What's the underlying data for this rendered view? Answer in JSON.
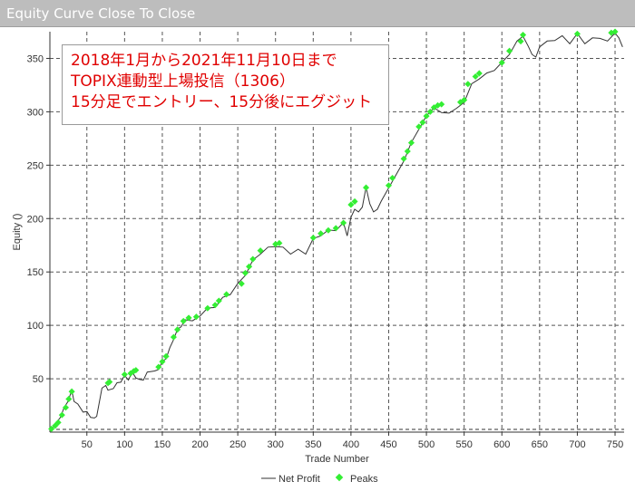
{
  "window": {
    "title": "Equity Curve Close To Close"
  },
  "annotation": {
    "lines": [
      "2018年1月から2021年11月10日まで",
      "TOPIX連動型上場投信（1306）",
      "15分足でエントリー、15分後にエグジット"
    ]
  },
  "chart_data": {
    "type": "line",
    "title": "",
    "xlabel": "Trade Number",
    "ylabel": "Equity ()",
    "xlim": [
      1,
      762
    ],
    "ylim": [
      0,
      375
    ],
    "x_ticks": [
      50,
      100,
      150,
      200,
      250,
      300,
      350,
      400,
      450,
      500,
      550,
      600,
      650,
      700,
      750
    ],
    "y_ticks": [
      50,
      100,
      150,
      200,
      250,
      300,
      350
    ],
    "grid": true,
    "legend_position": "bottom-center",
    "series": [
      {
        "name": "Net Profit",
        "color": "#333333",
        "x": [
          1,
          5,
          10,
          15,
          20,
          25,
          30,
          33,
          38,
          45,
          50,
          55,
          60,
          63,
          70,
          75,
          78,
          85,
          90,
          95,
          100,
          105,
          110,
          115,
          120,
          125,
          130,
          135,
          140,
          145,
          150,
          155,
          160,
          165,
          170,
          175,
          180,
          185,
          190,
          200,
          210,
          220,
          230,
          240,
          250,
          260,
          270,
          280,
          290,
          300,
          310,
          320,
          330,
          340,
          350,
          360,
          370,
          380,
          390,
          395,
          400,
          405,
          410,
          415,
          420,
          425,
          430,
          435,
          440,
          450,
          460,
          470,
          480,
          490,
          500,
          510,
          520,
          530,
          540,
          550,
          560,
          570,
          580,
          590,
          600,
          610,
          620,
          628,
          635,
          640,
          645,
          650,
          660,
          670,
          680,
          690,
          700,
          710,
          720,
          730,
          740,
          750,
          755,
          760
        ],
        "y": [
          2,
          5,
          8,
          15,
          22,
          30,
          38,
          30,
          25,
          20,
          18,
          15,
          12,
          16,
          40,
          45,
          38,
          42,
          45,
          48,
          52,
          50,
          55,
          52,
          48,
          50,
          55,
          58,
          56,
          60,
          65,
          70,
          78,
          88,
          95,
          100,
          104,
          106,
          103,
          110,
          115,
          118,
          125,
          130,
          138,
          148,
          160,
          168,
          172,
          175,
          172,
          168,
          170,
          168,
          180,
          185,
          188,
          190,
          195,
          185,
          200,
          210,
          205,
          212,
          228,
          215,
          205,
          210,
          215,
          230,
          240,
          255,
          270,
          285,
          295,
          305,
          298,
          300,
          302,
          310,
          325,
          332,
          335,
          340,
          345,
          355,
          365,
          372,
          360,
          355,
          350,
          362,
          365,
          368,
          370,
          365,
          372,
          365,
          368,
          370,
          365,
          375,
          368,
          362
        ]
      },
      {
        "name": "Peaks",
        "color": "#33ee33",
        "x": [
          3,
          8,
          12,
          17,
          22,
          26,
          30,
          78,
          80,
          100,
          108,
          112,
          115,
          145,
          150,
          155,
          165,
          170,
          178,
          185,
          195,
          210,
          220,
          225,
          235,
          255,
          260,
          265,
          270,
          280,
          300,
          305,
          350,
          360,
          370,
          380,
          390,
          400,
          405,
          420,
          450,
          455,
          470,
          475,
          480,
          490,
          495,
          500,
          505,
          510,
          515,
          520,
          545,
          550,
          555,
          565,
          570,
          600,
          610,
          625,
          628,
          700,
          745,
          750
        ],
        "y": [
          3,
          6,
          9,
          16,
          23,
          31,
          38,
          46,
          47,
          54,
          55,
          57,
          58,
          61,
          66,
          71,
          89,
          96,
          104,
          107,
          108,
          116,
          119,
          123,
          129,
          139,
          149,
          155,
          162,
          170,
          176,
          177,
          182,
          186,
          189,
          191,
          196,
          213,
          216,
          229,
          231,
          238,
          256,
          263,
          271,
          286,
          290,
          296,
          300,
          304,
          306,
          307,
          309,
          311,
          326,
          333,
          336,
          346,
          357,
          366,
          372,
          373,
          374,
          375
        ]
      }
    ]
  }
}
